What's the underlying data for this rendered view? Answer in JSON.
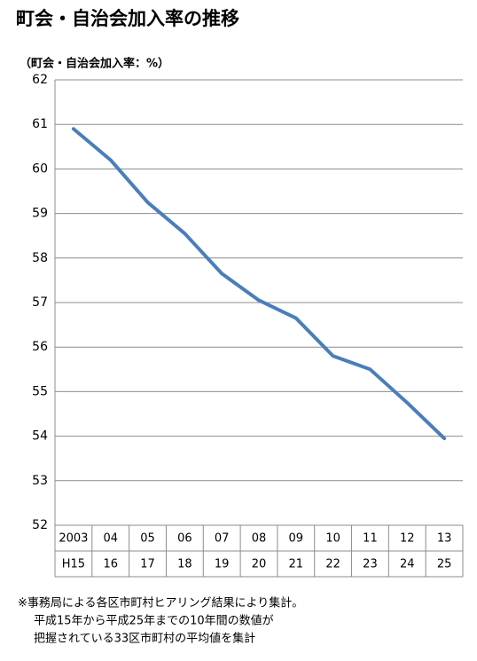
{
  "chart_data": {
    "type": "line",
    "title": "町会・自治会加入率の推移",
    "y_label": "（町会・自治会加入率：%）",
    "categories": [
      [
        "2003",
        "H15"
      ],
      [
        "04",
        "16"
      ],
      [
        "05",
        "17"
      ],
      [
        "06",
        "18"
      ],
      [
        "07",
        "19"
      ],
      [
        "08",
        "20"
      ],
      [
        "09",
        "21"
      ],
      [
        "10",
        "22"
      ],
      [
        "11",
        "23"
      ],
      [
        "12",
        "24"
      ],
      [
        "13",
        "25"
      ]
    ],
    "values": [
      60.9,
      60.2,
      59.25,
      58.55,
      57.65,
      57.05,
      56.65,
      55.8,
      55.5,
      54.75,
      53.95
    ],
    "color": "#4a7ebb",
    "ylim": [
      52,
      62
    ],
    "yticks": [
      52,
      53,
      54,
      55,
      56,
      57,
      58,
      59,
      60,
      61,
      62
    ],
    "grid": true,
    "notes": [
      "※事務局による各区市町村ヒアリング結果により集計。",
      "平成15年から平成25年までの10年間の数値が",
      "把握されている33区市町村の平均値を集計"
    ]
  }
}
